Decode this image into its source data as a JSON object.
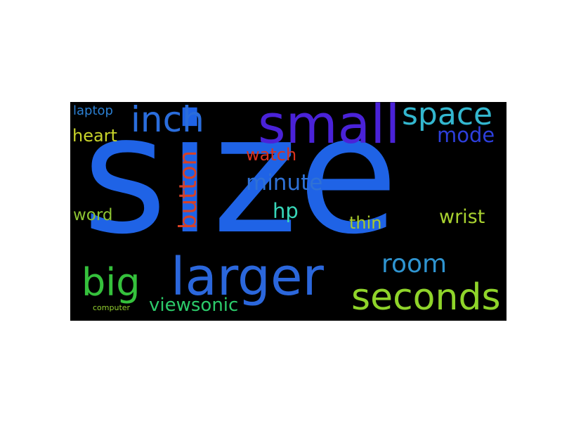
{
  "words": [
    {
      "text": "size",
      "color": "#1f63e6"
    },
    {
      "text": "small",
      "color": "#4a22d8"
    },
    {
      "text": "larger",
      "color": "#2b67dc"
    },
    {
      "text": "seconds",
      "color": "#8fd42a"
    },
    {
      "text": "inch",
      "color": "#2a6ddc"
    },
    {
      "text": "space",
      "color": "#33b7cf"
    },
    {
      "text": "big",
      "color": "#35c13c"
    },
    {
      "text": "button",
      "color": "#d84124"
    },
    {
      "text": "room",
      "color": "#2f94d0"
    },
    {
      "text": "minute",
      "color": "#2f71d6"
    },
    {
      "text": "viewsonic",
      "color": "#2ccb6a"
    },
    {
      "text": "mode",
      "color": "#2d3fdc"
    },
    {
      "text": "wrist",
      "color": "#a9d230"
    },
    {
      "text": "hp",
      "color": "#37d6b8"
    },
    {
      "text": "word",
      "color": "#8cc332"
    },
    {
      "text": "thin",
      "color": "#a8ca2a"
    },
    {
      "text": "heart",
      "color": "#c8d42a"
    },
    {
      "text": "watch",
      "color": "#d8321e"
    },
    {
      "text": "laptop",
      "color": "#2b7fd2"
    },
    {
      "text": "computer",
      "color": "#92cf2f"
    }
  ]
}
